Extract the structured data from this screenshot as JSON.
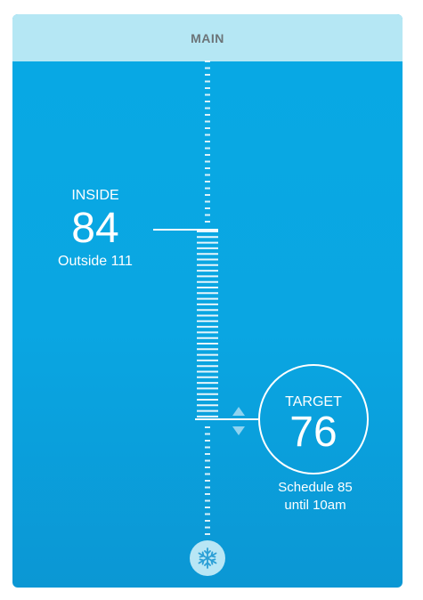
{
  "header": {
    "title": "MAIN"
  },
  "inside": {
    "label": "INSIDE",
    "temperature": "84",
    "outside_text": "Outside 111"
  },
  "target": {
    "label": "TARGET",
    "temperature": "76",
    "schedule_line1": "Schedule 85",
    "schedule_line2": "until 10am"
  },
  "controls": {
    "increase_icon": "chevron-up-icon",
    "decrease_icon": "chevron-down-icon",
    "mode_icon": "snowflake-icon"
  },
  "colors": {
    "header_bg": "#b5e7f4",
    "panel_bg": "#08a9e4",
    "text": "#ffffff",
    "header_text": "#6c7478",
    "mode_button_bg": "#b8e6f5",
    "snowflake": "#2a9fd6"
  }
}
